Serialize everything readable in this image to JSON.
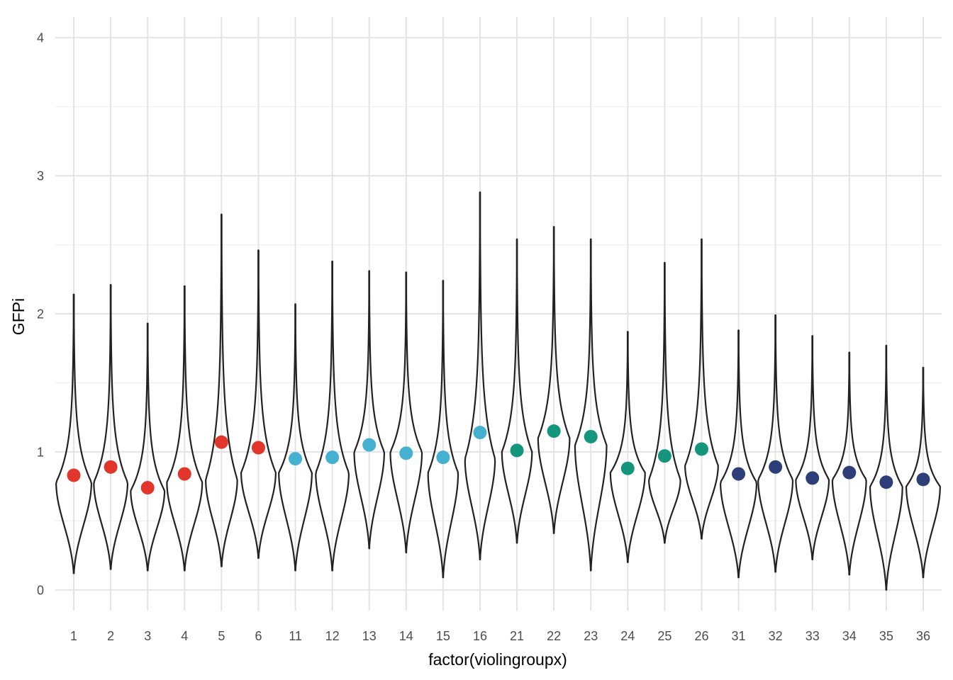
{
  "chart_data": {
    "type": "violin",
    "title": "",
    "xlabel": "factor(violingroupx)",
    "ylabel": "GFPi",
    "ylim": [
      -0.15,
      4.15
    ],
    "yticks": [
      "0",
      "1",
      "2",
      "3",
      "4"
    ],
    "grid": true,
    "legend": "none",
    "colors": {
      "red": "#e2362c",
      "light_blue": "#45b1d1",
      "green": "#13967c",
      "navy": "#2d3e78",
      "outline": "#222222",
      "grid": "#e3e3e3"
    },
    "categories": [
      "1",
      "2",
      "3",
      "4",
      "5",
      "6",
      "11",
      "12",
      "13",
      "14",
      "15",
      "16",
      "21",
      "22",
      "23",
      "24",
      "25",
      "26",
      "31",
      "32",
      "33",
      "34",
      "35",
      "36"
    ],
    "point_colors": [
      "red",
      "red",
      "red",
      "red",
      "red",
      "red",
      "light_blue",
      "light_blue",
      "light_blue",
      "light_blue",
      "light_blue",
      "light_blue",
      "green",
      "green",
      "green",
      "green",
      "green",
      "green",
      "navy",
      "navy",
      "navy",
      "navy",
      "navy",
      "navy"
    ],
    "means": [
      0.83,
      0.89,
      0.74,
      0.84,
      1.07,
      1.03,
      0.95,
      0.96,
      1.05,
      0.99,
      0.96,
      1.14,
      1.01,
      1.15,
      1.11,
      0.88,
      0.97,
      1.02,
      0.84,
      0.89,
      0.81,
      0.85,
      0.78,
      0.8
    ],
    "violin_min": [
      0.12,
      0.15,
      0.14,
      0.14,
      0.17,
      0.23,
      0.14,
      0.14,
      0.3,
      0.27,
      0.09,
      0.22,
      0.34,
      0.41,
      0.14,
      0.2,
      0.34,
      0.37,
      0.09,
      0.13,
      0.22,
      0.11,
      0.0,
      0.09
    ],
    "violin_max": [
      2.14,
      2.21,
      1.93,
      2.2,
      2.72,
      2.46,
      2.07,
      2.38,
      2.31,
      2.3,
      2.24,
      2.88,
      2.54,
      2.63,
      2.54,
      1.87,
      2.37,
      2.54,
      1.88,
      1.99,
      1.84,
      1.72,
      1.77,
      1.61
    ],
    "violin_mode": [
      0.78,
      0.78,
      0.72,
      0.78,
      0.8,
      0.85,
      0.85,
      0.85,
      1.0,
      1.0,
      0.85,
      0.95,
      1.0,
      1.1,
      1.05,
      0.85,
      0.8,
      0.9,
      0.78,
      0.8,
      0.8,
      0.8,
      0.75,
      0.75
    ],
    "violin_width": [
      0.47,
      0.45,
      0.45,
      0.47,
      0.42,
      0.46,
      0.44,
      0.44,
      0.4,
      0.42,
      0.4,
      0.4,
      0.4,
      0.42,
      0.42,
      0.46,
      0.42,
      0.44,
      0.48,
      0.46,
      0.44,
      0.45,
      0.43,
      0.45
    ]
  }
}
